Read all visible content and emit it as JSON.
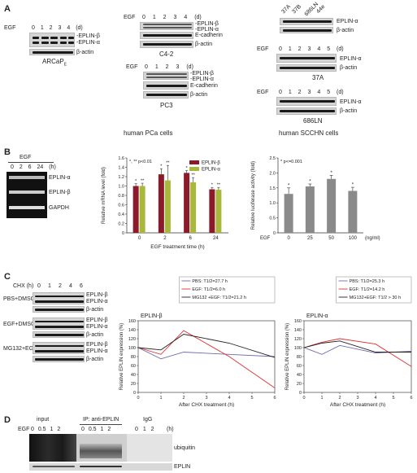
{
  "panels": {
    "A": "A",
    "B": "B",
    "C": "C",
    "D": "D"
  },
  "panel_a": {
    "egf": "EGF",
    "arcap_lanes": "0 1 2 3 4 (d)",
    "arcap_name": "ARCaP",
    "arcap_sub": "E",
    "eplin_b": "EPLIN-β",
    "eplin_a": "EPLIN-α",
    "eplin_b_dash": "-EPLIN-β",
    "eplin_a_dash": "-EPLIN-α",
    "eplin_a_dash2": "EPLIN-α",
    "beta_actin": "β-actin",
    "e_cadherin": "E-cadherin",
    "c42_name": "C4-2",
    "c42_lanes": "0 1 2 3 4 (d)",
    "pc3_name": "PC3",
    "pc3_lanes": "0 1 2 3 (d)",
    "scchn_cells": [
      "37A",
      "37B",
      "686LN",
      "44e"
    ],
    "scchn_egf_lanes": "0 1 2 3 4 5 (d)",
    "name_37a": "37A",
    "name_686ln": "686LN",
    "caption_pca": "human PCa cells",
    "caption_scchn": "human SCCHN cells"
  },
  "panel_b": {
    "egf": "EGF",
    "rt_lanes": "0 2 6 24 (h)",
    "rt_rows": [
      "EPLIN-α",
      "EPLIN-β",
      "GAPDH"
    ],
    "stat_note": "*, ** p<0.01",
    "stat_note2": "* p<=0.001",
    "egf_x": "EGF",
    "ngml": "(ng/ml)"
  },
  "panel_c": {
    "chx": "CHX (h)",
    "chx_lanes": [
      "0",
      "1",
      "2",
      "4",
      "6"
    ],
    "groups": [
      {
        "name": "PBS+DMSO",
        "rows": [
          "EPLIN-β",
          "EPLIN-α",
          "β-actin"
        ]
      },
      {
        "name": "EGF+DMSO",
        "rows": [
          "EPLIN-β",
          "EPLIN-α",
          "β-actin"
        ]
      },
      {
        "name": "MG132+EGF",
        "rows": [
          "EPLIN-β",
          "EPLIN-α",
          "β-actin"
        ]
      }
    ]
  },
  "panel_d": {
    "egf": "EGF",
    "input": "input",
    "ip": "IP: anti-EPLIN",
    "igg": "IgG",
    "lanes_input": "0 0.5 1 2",
    "lanes_ip": "0 0.5 1 2",
    "lanes_igg": "0 1 2",
    "h": "(h)",
    "ubiquitin": "ubiquitin",
    "eplin": "EPLIN"
  },
  "colors": {
    "eplin_b_bar": "#8b1a2b",
    "eplin_a_bar": "#a8b83a",
    "luc_bar": "#8a8a8a",
    "pbs_line": "#6b6bb0",
    "egf_line": "#e03030",
    "mg132_line": "#222222"
  },
  "chart_data": [
    {
      "type": "bar",
      "title": "",
      "xlabel": "EGF treatment time (h)",
      "ylabel": "Relative mRNA level (fold)",
      "categories": [
        "0",
        "2",
        "6",
        "24"
      ],
      "ylim": [
        0,
        1.6
      ],
      "yticks": [
        "0",
        "0.2",
        "0.4",
        "0.6",
        "0.8",
        "1.0",
        "1.2",
        "1.4",
        "1.6"
      ],
      "legend_position": "top-right",
      "series": [
        {
          "name": "EPLIN-β",
          "values": [
            1.0,
            1.25,
            1.28,
            0.93
          ],
          "errors": [
            0.05,
            0.12,
            0.05,
            0.04
          ],
          "marks": [
            "*",
            "*",
            "*",
            "*"
          ]
        },
        {
          "name": "EPLIN-α",
          "values": [
            1.0,
            1.12,
            1.08,
            0.92
          ],
          "errors": [
            0.06,
            0.32,
            0.1,
            0.05
          ],
          "marks": [
            "**",
            "**",
            "**",
            "**"
          ]
        }
      ]
    },
    {
      "type": "bar",
      "title": "",
      "xlabel": "",
      "ylabel": "Relative luciferase activity (fold)",
      "categories": [
        "0",
        "25",
        "50",
        "100"
      ],
      "ylim": [
        0,
        2.5
      ],
      "yticks": [
        "0",
        "0.5",
        "1.0",
        "1.5",
        "2.0",
        "2.5"
      ],
      "series": [
        {
          "name": "",
          "values": [
            1.3,
            1.55,
            1.8,
            1.4
          ],
          "errors": [
            0.2,
            0.08,
            0.12,
            0.12
          ],
          "marks": [
            "*",
            "*",
            "*",
            "*"
          ]
        }
      ]
    },
    {
      "type": "line",
      "title": "EPLIN-β",
      "xlabel": "After CHX treatment (h)",
      "ylabel": "Relative EPLIN expression (%)",
      "xlim": [
        0,
        6
      ],
      "ylim": [
        0,
        160
      ],
      "xticks": [
        "0",
        "1",
        "2",
        "3",
        "4",
        "5",
        "6"
      ],
      "yticks": [
        "0",
        "20",
        "40",
        "60",
        "80",
        "100",
        "120",
        "140",
        "160"
      ],
      "legend_position": "top",
      "series": [
        {
          "name": "PBS: T1/2=27.7 h",
          "x": [
            0,
            1,
            2,
            4,
            6
          ],
          "values": [
            100,
            75,
            90,
            85,
            80
          ]
        },
        {
          "name": "EGF: T1/2=6.0 h",
          "x": [
            0,
            1,
            2,
            4,
            6
          ],
          "values": [
            100,
            85,
            138,
            80,
            10
          ]
        },
        {
          "name": "MG132 +EGF: T1/2=21.2 h",
          "x": [
            0,
            1,
            2,
            4,
            6
          ],
          "values": [
            100,
            95,
            130,
            110,
            78
          ]
        }
      ]
    },
    {
      "type": "line",
      "title": "EPLIN-α",
      "xlabel": "After CHX treatment (h)",
      "ylabel": "Relative EPLIN expression (%)",
      "xlim": [
        0,
        6
      ],
      "ylim": [
        0,
        160
      ],
      "xticks": [
        "0",
        "1",
        "2",
        "3",
        "4",
        "5",
        "6"
      ],
      "yticks": [
        "0",
        "20",
        "40",
        "60",
        "80",
        "100",
        "120",
        "140",
        "160"
      ],
      "legend_position": "top",
      "series": [
        {
          "name": "PBS: T1/2=25.3 h",
          "x": [
            0,
            1,
            2,
            4,
            6
          ],
          "values": [
            100,
            85,
            105,
            88,
            92
          ]
        },
        {
          "name": "EGF: T1/2=14.2 h",
          "x": [
            0,
            1,
            2,
            4,
            6
          ],
          "values": [
            100,
            112,
            120,
            108,
            58
          ]
        },
        {
          "name": "MG132+EGF: T1/2 > 30 h",
          "x": [
            0,
            1,
            2,
            4,
            6
          ],
          "values": [
            100,
            110,
            115,
            90,
            90
          ]
        }
      ]
    }
  ]
}
